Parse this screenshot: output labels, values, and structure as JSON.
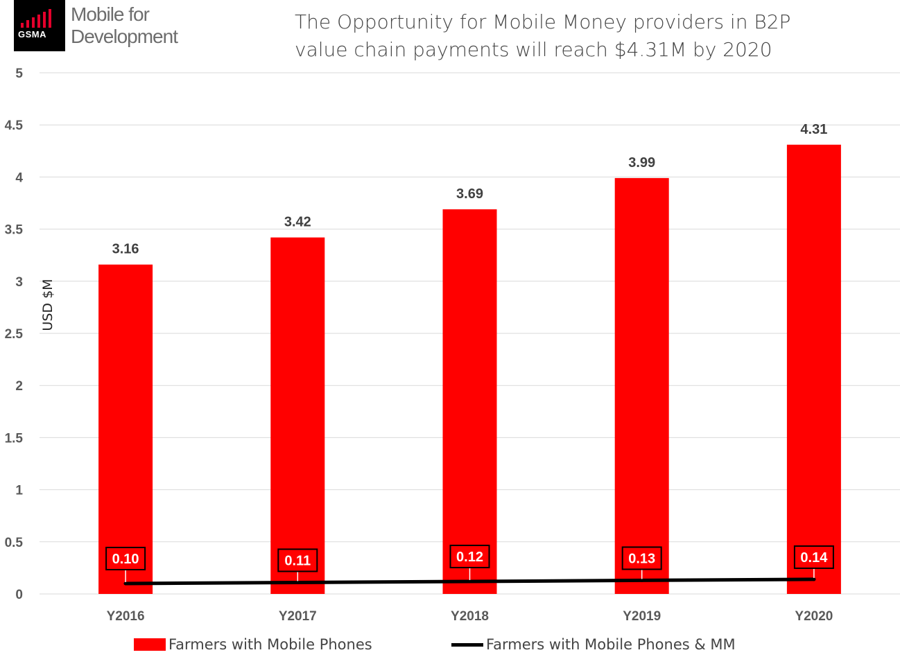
{
  "logo": {
    "brand": "GSMA",
    "line1": "Mobile for",
    "line2": "Development"
  },
  "chart_data": {
    "type": "bar",
    "title": "The Opportunity for Mobile Money providers in B2P value chain payments will reach $4.31M by 2020",
    "title_lines": [
      "The Opportunity for Mobile Money providers in B2P",
      "value chain payments will reach $4.31M by 2020"
    ],
    "ylabel": "USD $M",
    "xlabel": "",
    "ylim": [
      0,
      5
    ],
    "yticks": [
      "0",
      "0.5",
      "1",
      "1.5",
      "2",
      "2.5",
      "3",
      "3.5",
      "4",
      "4.5",
      "5"
    ],
    "categories": [
      "Y2016",
      "Y2017",
      "Y2018",
      "Y2019",
      "Y2020"
    ],
    "grid": true,
    "legend_position": "bottom",
    "series": [
      {
        "name": "Farmers with Mobile Phones",
        "type": "bar",
        "color": "#ff0000",
        "values": [
          3.16,
          3.42,
          3.69,
          3.99,
          4.31
        ],
        "labels": [
          "3.16",
          "3.42",
          "3.69",
          "3.99",
          "4.31"
        ]
      },
      {
        "name": "Farmers with Mobile Phones & MM",
        "type": "line",
        "color": "#000000",
        "values": [
          0.1,
          0.11,
          0.12,
          0.13,
          0.14
        ],
        "labels": [
          "0.10",
          "0.11",
          "0.12",
          "0.13",
          "0.14"
        ]
      }
    ]
  }
}
